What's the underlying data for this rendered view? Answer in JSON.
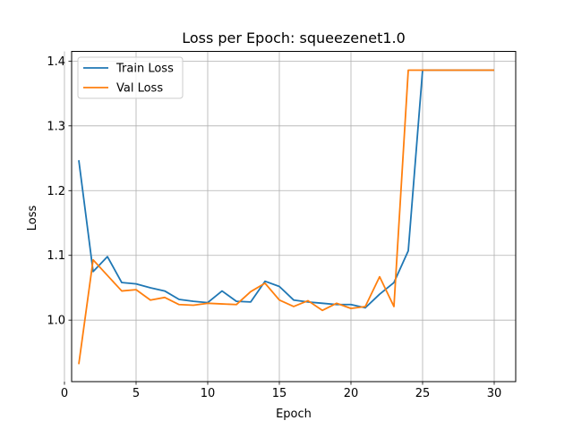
{
  "chart_data": {
    "type": "line",
    "title": "Loss per Epoch: squeezenet1.0",
    "xlabel": "Epoch",
    "ylabel": "Loss",
    "xlim": [
      0.5,
      31.5
    ],
    "ylim": [
      0.905,
      1.415
    ],
    "xticks": [
      0,
      5,
      10,
      15,
      20,
      25,
      30
    ],
    "yticks": [
      1.0,
      1.1,
      1.2,
      1.3,
      1.4
    ],
    "xtick_labels": [
      "0",
      "5",
      "10",
      "15",
      "20",
      "25",
      "30"
    ],
    "ytick_labels": [
      "1.0",
      "1.1",
      "1.2",
      "1.3",
      "1.4"
    ],
    "grid": true,
    "legend_position": "top-left",
    "x": [
      1,
      2,
      3,
      4,
      5,
      6,
      7,
      8,
      9,
      10,
      11,
      12,
      13,
      14,
      15,
      16,
      17,
      18,
      19,
      20,
      21,
      22,
      23,
      24,
      25,
      26,
      27,
      28,
      29,
      30
    ],
    "series": [
      {
        "name": "Train Loss",
        "color": "#1f77b4",
        "values": [
          1.247,
          1.075,
          1.098,
          1.058,
          1.056,
          1.05,
          1.045,
          1.032,
          1.029,
          1.027,
          1.045,
          1.029,
          1.028,
          1.06,
          1.052,
          1.031,
          1.028,
          1.026,
          1.024,
          1.024,
          1.019,
          1.04,
          1.058,
          1.107,
          1.386,
          1.386,
          1.386,
          1.386,
          1.386,
          1.386
        ]
      },
      {
        "name": "Val Loss",
        "color": "#ff7f0e",
        "values": [
          0.932,
          1.093,
          1.069,
          1.045,
          1.047,
          1.031,
          1.035,
          1.024,
          1.023,
          1.026,
          1.025,
          1.024,
          1.044,
          1.057,
          1.031,
          1.021,
          1.03,
          1.015,
          1.026,
          1.018,
          1.021,
          1.067,
          1.021,
          1.386,
          1.386,
          1.386,
          1.386,
          1.386,
          1.386,
          1.386
        ]
      }
    ]
  }
}
